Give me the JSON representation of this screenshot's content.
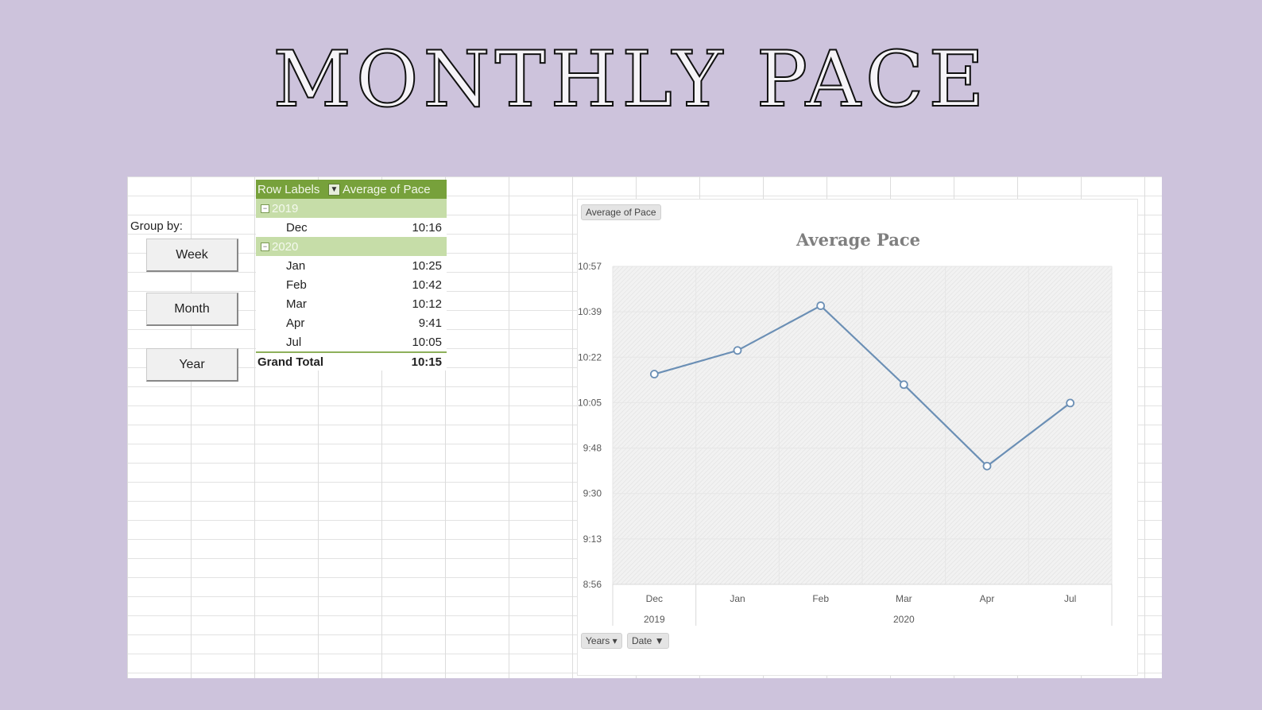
{
  "page_title": "MONTHLY PACE",
  "controls": {
    "group_by_label": "Group by:",
    "week_label": "Week",
    "month_label": "Month",
    "year_label": "Year"
  },
  "pivot": {
    "header_row_labels": "Row Labels",
    "header_values": "Average of Pace",
    "groups": [
      {
        "year": "2019",
        "rows": [
          {
            "month": "Dec",
            "pace": "10:16"
          }
        ]
      },
      {
        "year": "2020",
        "rows": [
          {
            "month": "Jan",
            "pace": "10:25"
          },
          {
            "month": "Feb",
            "pace": "10:42"
          },
          {
            "month": "Mar",
            "pace": "10:12"
          },
          {
            "month": "Apr",
            "pace": "9:41"
          },
          {
            "month": "Jul",
            "pace": "10:05"
          }
        ]
      }
    ],
    "grand_total_label": "Grand Total",
    "grand_total_value": "10:15"
  },
  "chart_field_buttons": {
    "values_button": "Average of Pace",
    "years_button": "Years",
    "date_button": "Date"
  },
  "chart_data": {
    "type": "line",
    "title": "Average Pace",
    "x": [
      "Dec",
      "Jan",
      "Feb",
      "Mar",
      "Apr",
      "Jul"
    ],
    "x_groups": [
      {
        "label": "2019",
        "categories": [
          "Dec"
        ]
      },
      {
        "label": "2020",
        "categories": [
          "Jan",
          "Feb",
          "Mar",
          "Apr",
          "Jul"
        ]
      }
    ],
    "series": [
      {
        "values": [
          "10:16",
          "10:25",
          "10:42",
          "10:12",
          "9:41",
          "10:05"
        ]
      }
    ],
    "y_ticks": [
      "10:57",
      "10:39",
      "10:22",
      "10:05",
      "9:48",
      "9:30",
      "9:13",
      "8:56"
    ],
    "ylim": [
      "8:56",
      "10:57"
    ],
    "grid": true,
    "legend": "none",
    "line_color": "#6b8fb5",
    "plot_fill": "#f2f2f2"
  }
}
